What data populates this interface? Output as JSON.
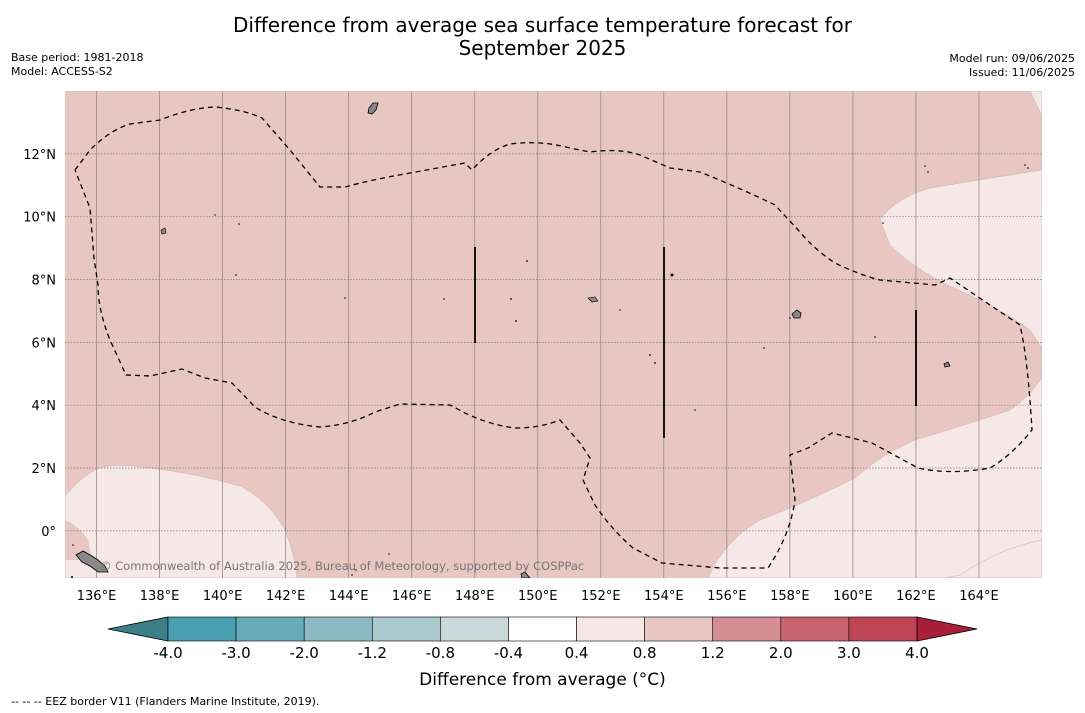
{
  "header": {
    "title_line1": "Difference from average sea surface temperature forecast for",
    "title_line2": "September 2025",
    "base_period": "Base period: 1981-2018",
    "model": "Model: ACCESS-S2",
    "model_run": "Model run: 09/06/2025",
    "issued": "Issued: 11/06/2025"
  },
  "map": {
    "lon_ticks": [
      "136°E",
      "138°E",
      "140°E",
      "142°E",
      "144°E",
      "146°E",
      "148°E",
      "150°E",
      "152°E",
      "154°E",
      "156°E",
      "158°E",
      "160°E",
      "162°E",
      "164°E"
    ],
    "lon_values": [
      136,
      138,
      140,
      142,
      144,
      146,
      148,
      150,
      152,
      154,
      156,
      158,
      160,
      162,
      164
    ],
    "lat_ticks": [
      "12°N",
      "10°N",
      "8°N",
      "6°N",
      "4°N",
      "2°N",
      "0°"
    ],
    "lat_values": [
      12,
      10,
      8,
      6,
      4,
      2,
      0
    ],
    "lon_range": [
      135,
      166
    ],
    "lat_range": [
      -1.5,
      14
    ],
    "watermark": "© Commonwealth of Australia 2025, Bureau of Meteorology, supported by COSPPac",
    "fill_colors": {
      "band_0_4_0_8": "#f5e8e6",
      "band_0_8_1_2": "#e8c6c2"
    },
    "land_color": "#888888",
    "gridlines": "dotted"
  },
  "colorbar": {
    "labels": [
      "-4.0",
      "-3.0",
      "-2.0",
      "-1.2",
      "-0.8",
      "-0.4",
      "0.4",
      "0.8",
      "1.2",
      "2.0",
      "3.0",
      "4.0"
    ],
    "colors": [
      "#4aa0b0",
      "#68abb9",
      "#8bb9c2",
      "#acc9cd",
      "#cbd8d9",
      "#ffffff",
      "#f5e8e6",
      "#e8c6c2",
      "#d58f93",
      "#c86470",
      "#be4556"
    ],
    "under_color": "#3d7f88",
    "over_color": "#a82038",
    "title": "Difference from average (°C)"
  },
  "footnote": "--  --  -- EEZ border V11 (Flanders Marine Institute, 2019)."
}
